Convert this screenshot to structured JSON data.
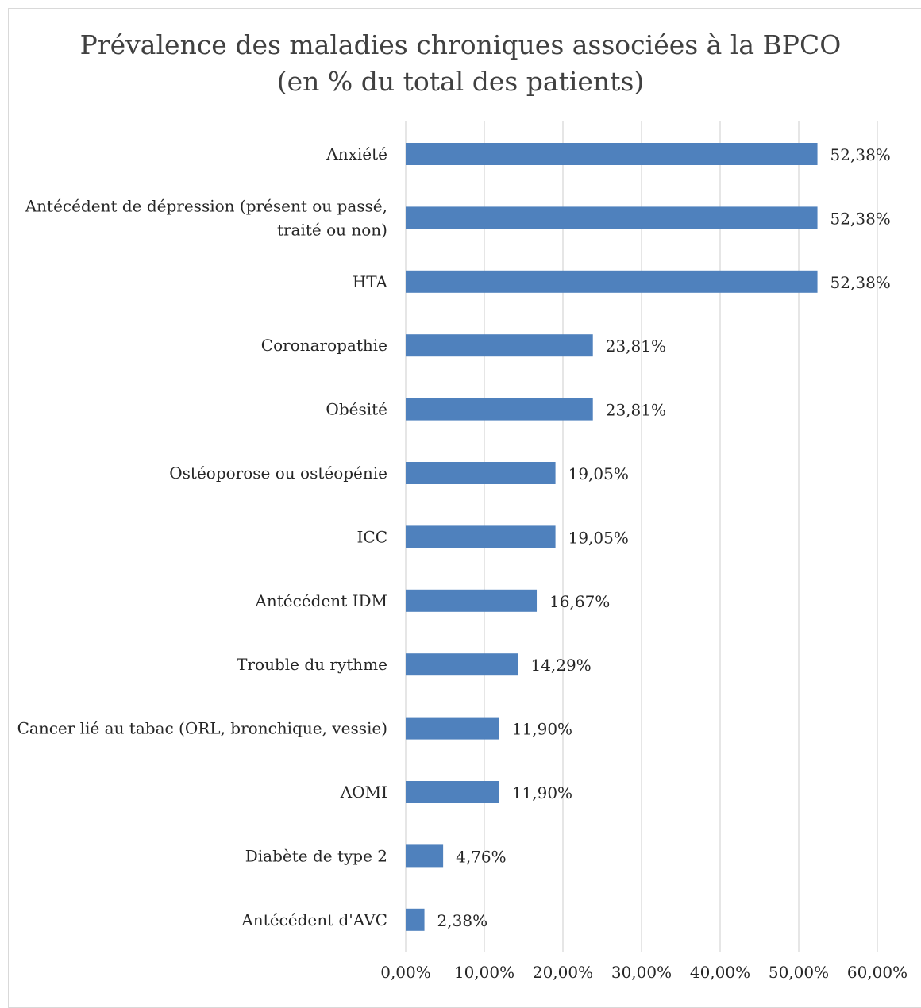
{
  "chart_data": {
    "type": "bar",
    "orientation": "horizontal",
    "title_lines": [
      "Prévalence des maladies chroniques associées à la BPCO",
      "(en % du total des patients)"
    ],
    "categories": [
      [
        "Anxiété"
      ],
      [
        "Antécédent de dépression (présent ou passé,",
        "traité ou non)"
      ],
      [
        "HTA"
      ],
      [
        "Coronaropathie"
      ],
      [
        "Obésité"
      ],
      [
        "Ostéoporose ou ostéopénie"
      ],
      [
        "ICC"
      ],
      [
        "Antécédent IDM"
      ],
      [
        "Trouble du rythme"
      ],
      [
        "Cancer lié au tabac (ORL, bronchique, vessie)"
      ],
      [
        "AOMI"
      ],
      [
        "Diabète de type 2"
      ],
      [
        "Antécédent d'AVC"
      ]
    ],
    "values": [
      52.38,
      52.38,
      52.38,
      23.81,
      23.81,
      19.05,
      19.05,
      16.67,
      14.29,
      11.9,
      11.9,
      4.76,
      2.38
    ],
    "data_labels": [
      "52,38%",
      "52,38%",
      "52,38%",
      "23,81%",
      "23,81%",
      "19,05%",
      "19,05%",
      "16,67%",
      "14,29%",
      "11,90%",
      "11,90%",
      "4,76%",
      "2,38%"
    ],
    "x_ticks": [
      0,
      10,
      20,
      30,
      40,
      50,
      60
    ],
    "x_tick_labels": [
      "0,00%",
      "10,00%",
      "20,00%",
      "30,00%",
      "40,00%",
      "50,00%",
      "60,00%"
    ],
    "xlim": [
      0,
      60
    ],
    "grid": true,
    "legend": "none",
    "colors": {
      "bar": "#4f81bd",
      "grid": "#d9d9d9",
      "text": "#262626",
      "title": "#404040"
    }
  }
}
